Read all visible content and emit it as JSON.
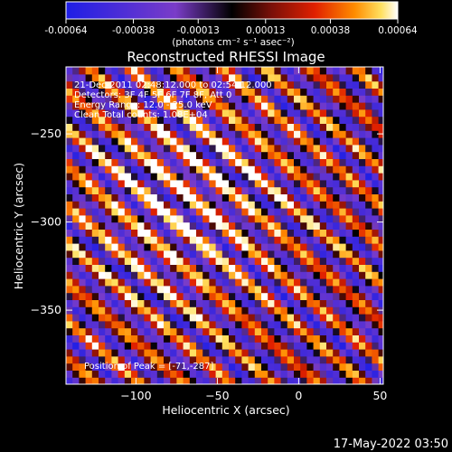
{
  "colorbar": {
    "tick_labels": [
      "-0.00064",
      "-0.00038",
      "-0.00013",
      "0.00013",
      "0.00038",
      "0.00064"
    ],
    "tick_values": [
      -0.00064,
      -0.00038,
      -0.00013,
      0.00013,
      0.00038,
      0.00064
    ],
    "range": [
      -0.00064,
      0.00064
    ],
    "units_label": "(photons cm⁻² s⁻¹ asec⁻²)"
  },
  "chart_data": {
    "type": "heatmap",
    "title": "Reconstructed RHESSI Image",
    "xlabel": "Heliocentric X (arcsec)",
    "ylabel": "Heliocentric Y (arcsec)",
    "xlim": [
      -143,
      52
    ],
    "ylim": [
      -392,
      -212
    ],
    "x_ticks": [
      -100,
      -50,
      0,
      50
    ],
    "x_tick_labels": [
      "−100",
      "−50",
      "0",
      "50"
    ],
    "y_ticks": [
      -250,
      -300,
      -350
    ],
    "y_tick_labels": [
      "−250",
      "−300",
      "−350"
    ],
    "annotations": {
      "time_range": "21-Dec-2011 02:48:12.000 to 02:54:12.000",
      "detectors": "Detectors: 3F 4F 5F 6F 7F 8F, Att 0",
      "energy_range": "Energy Range: 12.0 - 25.0 keV",
      "method": "Clean    Total counts: 1.08E+04",
      "peak": "Position of Peak = [-71,-287]"
    },
    "peak_position": [
      -71,
      -287
    ],
    "stripe_angle_deg": -50,
    "colormap": "rhessi-rainbow",
    "pixel_size_arcsec": 4
  },
  "footer": {
    "timestamp": "17-May-2022 03:50"
  }
}
